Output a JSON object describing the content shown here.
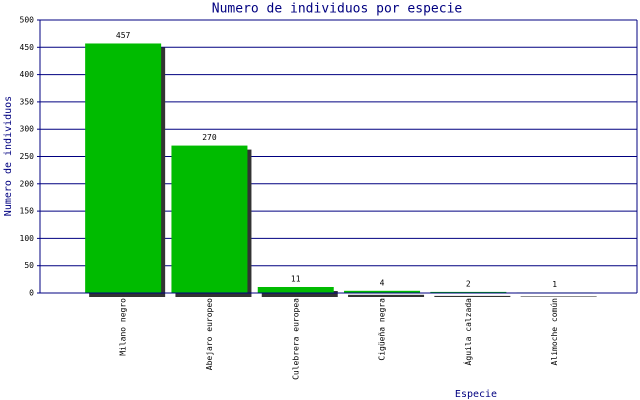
{
  "chart_data": {
    "type": "bar",
    "title": "Numero de individuos por especie",
    "x_label": "Especie",
    "y_label": "Numero de individuos",
    "categories": [
      "Milano negro",
      "Abejaro europeo",
      "Culebrera europea",
      "Cigüeña negra",
      "Águila calzada",
      "Alimoche común"
    ],
    "values": [
      457,
      270,
      11,
      4,
      2,
      1
    ],
    "color": "#00bb00",
    "ylim": [
      0,
      500
    ],
    "yticks": [
      0,
      50,
      100,
      150,
      200,
      250,
      300,
      350,
      400,
      450,
      500
    ],
    "grid": true
  }
}
